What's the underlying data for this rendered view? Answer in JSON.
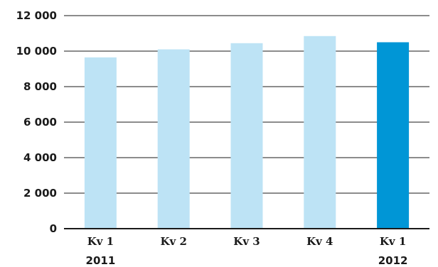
{
  "chart_data": {
    "type": "bar",
    "title": "",
    "xlabel": "",
    "ylabel": "",
    "categories": [
      "Kv 1",
      "Kv 2",
      "Kv 3",
      "Kv 4",
      "Kv 1"
    ],
    "year_labels": [
      "2011",
      "",
      "",
      "",
      "2012"
    ],
    "values": [
      9650,
      10100,
      10450,
      10850,
      10500
    ],
    "highlight_index": 4,
    "ylim": [
      0,
      12000
    ],
    "yticks": [
      0,
      2000,
      4000,
      6000,
      8000,
      10000,
      12000
    ],
    "ytick_labels": [
      "0",
      "2 000",
      "4 000",
      "6 000",
      "8 000",
      "10 000",
      "12 000"
    ],
    "grid": true,
    "colors": {
      "bar": "#bde3f5",
      "highlight": "#0096d6",
      "grid": "#1a1a1a"
    }
  }
}
